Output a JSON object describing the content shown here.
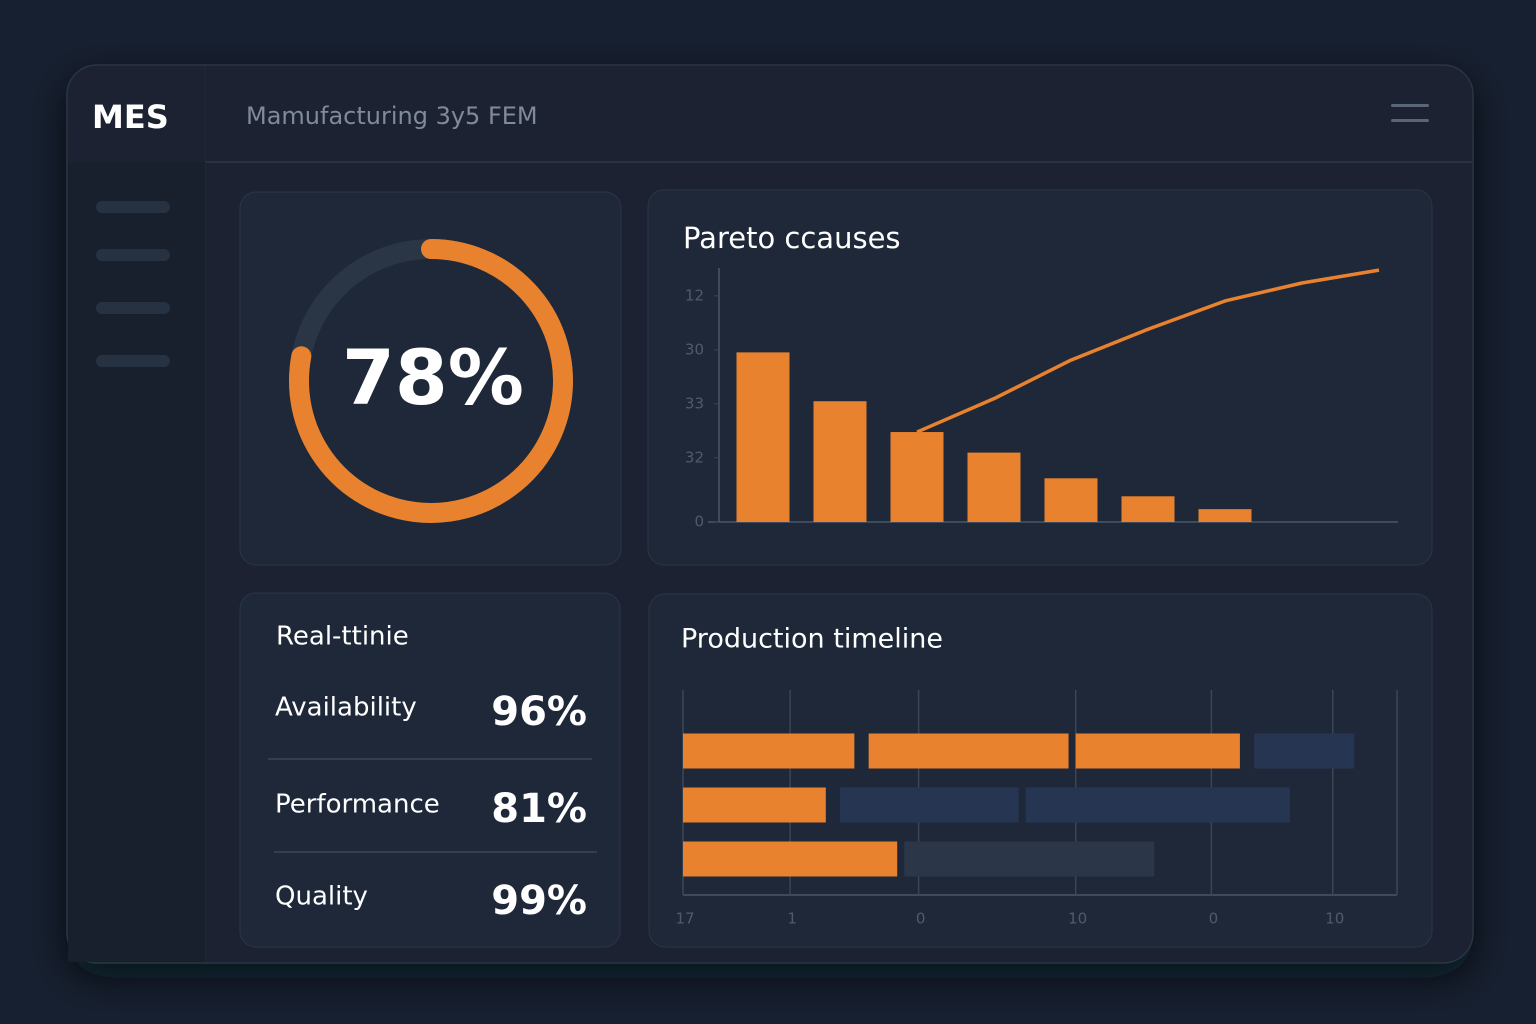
{
  "header": {
    "logo": "MES",
    "title": "Mamufacturing 3y5 FEM"
  },
  "gauge": {
    "value": 78,
    "label": "78%",
    "range": [
      0,
      100
    ],
    "color": "#e8822e",
    "track_color": "#2a3546"
  },
  "pareto": {
    "type": "bar",
    "title": "Pareto ccauses",
    "categories": [
      null,
      null,
      null,
      null,
      null,
      null,
      null,
      null,
      null
    ],
    "values": [
      66,
      47,
      35,
      27,
      17,
      10,
      5,
      null,
      null
    ],
    "line_values": [
      null,
      null,
      35,
      48,
      63,
      75,
      86,
      93,
      98
    ],
    "color": "#e8822e",
    "line_color": "#e8822e",
    "ylim": [
      0,
      100
    ],
    "yticks": [
      {
        "value": 88,
        "label": "12"
      },
      {
        "value": 67,
        "label": "30"
      },
      {
        "value": 46,
        "label": "33"
      },
      {
        "value": 25,
        "label": "32"
      },
      0
    ]
  },
  "oee": {
    "title": "Real-ttinie",
    "rows": [
      {
        "label": "Availability",
        "value": "96%"
      },
      {
        "label": "Performance",
        "value": "81%"
      },
      {
        "label": "Quality",
        "value": "99%"
      }
    ]
  },
  "timeline": {
    "type": "gantt",
    "title": "Production timeline",
    "xlim": [
      0,
      100
    ],
    "xticks": [
      {
        "value": 0,
        "label": "17"
      },
      {
        "value": 15,
        "label": "1"
      },
      {
        "value": 33,
        "label": "0"
      },
      {
        "value": 55,
        "label": "10"
      },
      {
        "value": 74,
        "label": "0"
      },
      {
        "value": 91,
        "label": "10"
      }
    ],
    "rows": [
      [
        {
          "start": 0,
          "end": 24,
          "color": "#e8822e"
        },
        {
          "start": 26,
          "end": 54,
          "color": "#e8822e"
        },
        {
          "start": 55,
          "end": 78,
          "color": "#e8822e"
        },
        {
          "start": 80,
          "end": 94,
          "color": "#263652"
        }
      ],
      [
        {
          "start": 0,
          "end": 20,
          "color": "#e8822e"
        },
        {
          "start": 22,
          "end": 47,
          "color": "#263652"
        },
        {
          "start": 48,
          "end": 85,
          "color": "#263652"
        }
      ],
      [
        {
          "start": 0,
          "end": 30,
          "color": "#e8822e"
        },
        {
          "start": 31,
          "end": 66,
          "color": "#2b3648"
        }
      ]
    ]
  }
}
